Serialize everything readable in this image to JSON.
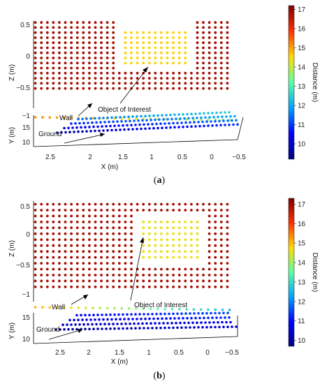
{
  "colormap": {
    "name": "jet",
    "stops": [
      "#00007f",
      "#0000ff",
      "#00a2ff",
      "#5dffa2",
      "#ffdc00",
      "#ff3000",
      "#7f0000"
    ],
    "range": [
      9.2,
      17.2
    ]
  },
  "chart_data": [
    {
      "type": "scatter",
      "subtype": "3d-point-cloud",
      "caption": {
        "open": "(",
        "letter": "a",
        "close": ")"
      },
      "colorbar": {
        "label": "Distance (m)",
        "ticks": [
          "10",
          "11",
          "12",
          "13",
          "14",
          "15",
          "16",
          "17"
        ],
        "range": [
          9.2,
          17.2
        ]
      },
      "axes": {
        "x": {
          "label": "X (m)",
          "ticks": [
            "2.5",
            "2",
            "1.5",
            "1",
            "0.5",
            "0",
            "−0.5"
          ],
          "range": [
            2.85,
            -0.55
          ]
        },
        "z": {
          "label": "Z (m)",
          "ticks": [
            "0.5",
            "0",
            "−0.5",
            "−1"
          ],
          "range": [
            0.58,
            -1.1
          ]
        },
        "y": {
          "label": "Y (m)",
          "ticks": [
            "15",
            "10"
          ]
        }
      },
      "annotations": {
        "wall": "Wall",
        "object": "Object of Interest",
        "ground": "Ground"
      },
      "grid": false,
      "legend": "colorbar-right",
      "wall": {
        "x_range": [
          2.82,
          -0.48
        ],
        "z_range": [
          0.55,
          -0.84
        ],
        "step": 0.1,
        "distance": 16.8
      },
      "object": {
        "x_range": [
          1.4,
          0.25
        ],
        "z_range": [
          0.45,
          -0.3
        ],
        "distance": 14.6
      },
      "ground_distance_range": [
        9.6,
        12.6
      ],
      "wall_base_distance_range": [
        13.5,
        15.2
      ]
    },
    {
      "type": "scatter",
      "subtype": "3d-point-cloud",
      "caption": {
        "open": "(",
        "letter": "b",
        "close": ")"
      },
      "colorbar": {
        "label": "Distance (m)",
        "ticks": [
          "10",
          "11",
          "12",
          "13",
          "14",
          "15",
          "16",
          "17"
        ],
        "range": [
          9.7,
          17.3
        ]
      },
      "axes": {
        "x": {
          "label": "X (m)",
          "ticks": [
            "2.5",
            "2",
            "1.5",
            "1",
            "0.5",
            "0",
            "−0.5"
          ],
          "range": [
            2.85,
            -0.55
          ]
        },
        "z": {
          "label": "Z (m)",
          "ticks": [
            "0.5",
            "0",
            "−0.5",
            "−1"
          ],
          "range": [
            0.58,
            -1.1
          ]
        },
        "y": {
          "label": "Y (m)",
          "ticks": [
            "15",
            "10"
          ]
        }
      },
      "annotations": {
        "wall": "Wall",
        "object": "Object of Interest",
        "ground": "Ground"
      },
      "grid": false,
      "legend": "colorbar-right",
      "wall": {
        "x_range": [
          2.82,
          -0.48
        ],
        "z_range": [
          0.55,
          -0.9
        ],
        "step": 0.1,
        "distance": 16.9
      },
      "object": {
        "x_range": [
          1.05,
          0.05
        ],
        "z_range": [
          0.3,
          -0.4
        ],
        "distance": 14.6
      },
      "ground_distance_range": [
        9.9,
        11.6
      ],
      "wall_base_distance_range": [
        12.5,
        15.1
      ]
    }
  ]
}
